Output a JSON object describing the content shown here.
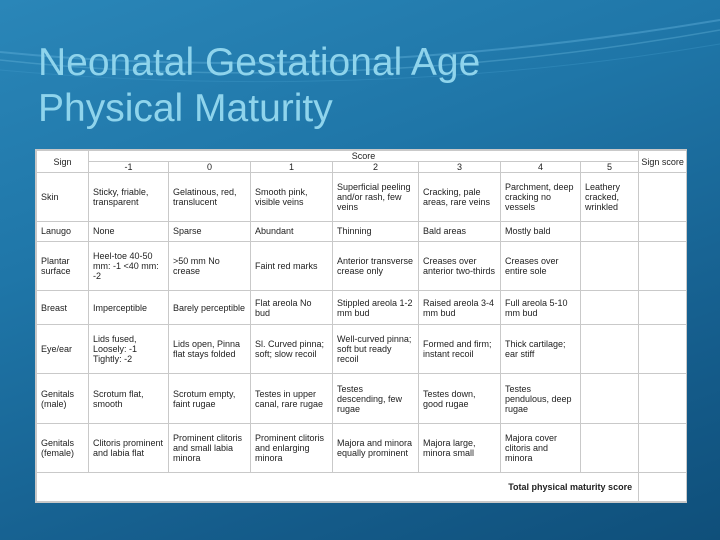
{
  "slide": {
    "title_line1": "Neonatal Gestational Age",
    "title_line2": "Physical Maturity"
  },
  "table": {
    "sign_header": "Sign",
    "score_header": "Score",
    "score_col_header": "Sign score",
    "score_values": [
      "-1",
      "0",
      "1",
      "2",
      "3",
      "4",
      "5"
    ],
    "rows": [
      {
        "sign": "Skin",
        "cells": [
          "Sticky, friable, transparent",
          "Gelatinous, red, translucent",
          "Smooth pink, visible veins",
          "Superficial peeling and/or rash, few veins",
          "Cracking, pale areas, rare veins",
          "Parchment, deep cracking no vessels",
          "Leathery cracked, wrinkled"
        ]
      },
      {
        "sign": "Lanugo",
        "cells": [
          "None",
          "Sparse",
          "Abundant",
          "Thinning",
          "Bald areas",
          "Mostly bald",
          ""
        ]
      },
      {
        "sign": "Plantar surface",
        "cells": [
          "Heel-toe 40-50 mm: -1 <40 mm: -2",
          ">50 mm No crease",
          "Faint red marks",
          "Anterior transverse crease only",
          "Creases over anterior two-thirds",
          "Creases over entire sole",
          ""
        ]
      },
      {
        "sign": "Breast",
        "cells": [
          "Imperceptible",
          "Barely perceptible",
          "Flat areola No bud",
          "Stippled areola 1-2 mm bud",
          "Raised areola 3-4 mm bud",
          "Full areola 5-10 mm bud",
          ""
        ]
      },
      {
        "sign": "Eye/ear",
        "cells": [
          "Lids fused, Loosely: -1 Tightly: -2",
          "Lids open, Pinna flat stays folded",
          "Sl. Curved pinna; soft; slow recoil",
          "Well-curved pinna; soft but ready recoil",
          "Formed and firm; instant recoil",
          "Thick cartilage; ear stiff",
          ""
        ]
      },
      {
        "sign": "Genitals (male)",
        "cells": [
          "Scrotum flat, smooth",
          "Scrotum empty, faint rugae",
          "Testes in upper canal, rare rugae",
          "Testes descending, few rugae",
          "Testes down, good rugae",
          "Testes pendulous, deep rugae",
          ""
        ]
      },
      {
        "sign": "Genitals (female)",
        "cells": [
          "Clitoris prominent and labia flat",
          "Prominent clitoris and small labia minora",
          "Prominent clitoris and enlarging minora",
          "Majora and minora equally prominent",
          "Majora large, minora small",
          "Majora cover clitoris and minora",
          ""
        ]
      }
    ],
    "total_label": "Total physical maturity score"
  }
}
